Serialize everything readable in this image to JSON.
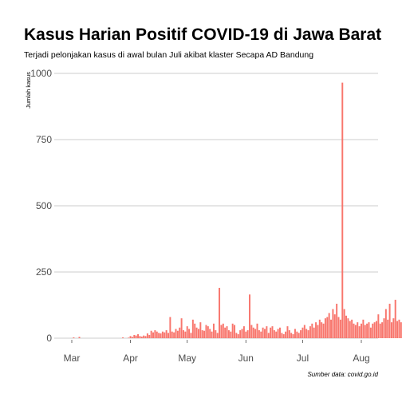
{
  "chart_data": {
    "type": "bar",
    "title": "Kasus Harian Positif COVID-19 di Jawa Barat",
    "subtitle": "Terjadi pelonjakan kasus di awal bulan Juli akibat klaster Secapa AD Bandung",
    "ylabel": "Jumlah kasus",
    "xlabel": "",
    "caption": "Sumber data: covid.go.id",
    "ylim": [
      0,
      1000
    ],
    "yticks": [
      "0",
      "250",
      "500",
      "750",
      "1000"
    ],
    "xticks": [
      {
        "label": "Mar",
        "date": "2020-03-01"
      },
      {
        "label": "Apr",
        "date": "2020-04-01"
      },
      {
        "label": "May",
        "date": "2020-05-01"
      },
      {
        "label": "Jun",
        "date": "2020-06-01"
      },
      {
        "label": "Jul",
        "date": "2020-07-01"
      },
      {
        "label": "Aug",
        "date": "2020-08-01"
      }
    ],
    "bar_color": "#f8766d",
    "grid": "horizontal",
    "x_start": "2020-03-02",
    "values": [
      3,
      0,
      0,
      5,
      0,
      0,
      0,
      0,
      0,
      0,
      0,
      0,
      0,
      0,
      0,
      0,
      0,
      0,
      0,
      0,
      0,
      0,
      0,
      0,
      0,
      0,
      3,
      0,
      0,
      2,
      8,
      5,
      12,
      10,
      15,
      8,
      6,
      10,
      8,
      18,
      12,
      28,
      22,
      30,
      25,
      20,
      18,
      25,
      22,
      30,
      20,
      80,
      25,
      22,
      35,
      28,
      40,
      75,
      30,
      25,
      45,
      35,
      20,
      70,
      55,
      40,
      35,
      60,
      30,
      28,
      50,
      45,
      35,
      25,
      55,
      30,
      20,
      190,
      50,
      55,
      40,
      45,
      30,
      25,
      55,
      50,
      20,
      15,
      30,
      35,
      45,
      25,
      30,
      165,
      50,
      40,
      35,
      55,
      30,
      25,
      40,
      35,
      45,
      20,
      40,
      45,
      30,
      25,
      35,
      40,
      20,
      15,
      25,
      45,
      30,
      20,
      15,
      35,
      25,
      20,
      30,
      40,
      50,
      35,
      30,
      45,
      55,
      40,
      60,
      50,
      70,
      60,
      55,
      75,
      80,
      95,
      70,
      110,
      90,
      130,
      80,
      70,
      965,
      110,
      85,
      75,
      65,
      70,
      55,
      50,
      60,
      45,
      55,
      70,
      50,
      55,
      60,
      40,
      55,
      60,
      65,
      90,
      55,
      60,
      75,
      110,
      70,
      130,
      60,
      75,
      145,
      65,
      70,
      60
    ]
  }
}
